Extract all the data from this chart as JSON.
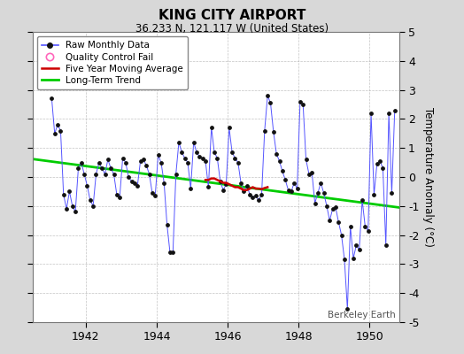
{
  "title": "KING CITY AIRPORT",
  "subtitle": "36.233 N, 121.117 W (United States)",
  "ylabel": "Temperature Anomaly (°C)",
  "watermark": "Berkeley Earth",
  "xlim": [
    1940.5,
    1950.83
  ],
  "ylim": [
    -5,
    5
  ],
  "yticks": [
    -5,
    -4,
    -3,
    -2,
    -1,
    0,
    1,
    2,
    3,
    4,
    5
  ],
  "xticks": [
    1942,
    1944,
    1946,
    1948,
    1950
  ],
  "bg_color": "#d8d8d8",
  "plot_bg_color": "#ffffff",
  "raw_color": "#5555ff",
  "raw_marker_color": "#111111",
  "ma_color": "#cc0000",
  "trend_color": "#00cc00",
  "qc_color": "#ff66bb",
  "raw_data_x": [
    1941.042,
    1941.125,
    1941.208,
    1941.292,
    1941.375,
    1941.458,
    1941.542,
    1941.625,
    1941.708,
    1941.792,
    1941.875,
    1941.958,
    1942.042,
    1942.125,
    1942.208,
    1942.292,
    1942.375,
    1942.458,
    1942.542,
    1942.625,
    1942.708,
    1942.792,
    1942.875,
    1942.958,
    1943.042,
    1943.125,
    1943.208,
    1943.292,
    1943.375,
    1943.458,
    1943.542,
    1943.625,
    1943.708,
    1943.792,
    1943.875,
    1943.958,
    1944.042,
    1944.125,
    1944.208,
    1944.292,
    1944.375,
    1944.458,
    1944.542,
    1944.625,
    1944.708,
    1944.792,
    1944.875,
    1944.958,
    1945.042,
    1945.125,
    1945.208,
    1945.292,
    1945.375,
    1945.458,
    1945.542,
    1945.625,
    1945.708,
    1945.792,
    1945.875,
    1945.958,
    1946.042,
    1946.125,
    1946.208,
    1946.292,
    1946.375,
    1946.458,
    1946.542,
    1946.625,
    1946.708,
    1946.792,
    1946.875,
    1946.958,
    1947.042,
    1947.125,
    1947.208,
    1947.292,
    1947.375,
    1947.458,
    1947.542,
    1947.625,
    1947.708,
    1947.792,
    1947.875,
    1947.958,
    1948.042,
    1948.125,
    1948.208,
    1948.292,
    1948.375,
    1948.458,
    1948.542,
    1948.625,
    1948.708,
    1948.792,
    1948.875,
    1948.958,
    1949.042,
    1949.125,
    1949.208,
    1949.292,
    1949.375,
    1949.458,
    1949.542,
    1949.625,
    1949.708,
    1949.792,
    1949.875,
    1949.958,
    1950.042,
    1950.125,
    1950.208,
    1950.292,
    1950.375,
    1950.458,
    1950.542,
    1950.625,
    1950.708
  ],
  "raw_data_y": [
    2.7,
    1.5,
    1.8,
    1.6,
    -0.6,
    -1.1,
    -0.5,
    -1.0,
    -1.2,
    0.3,
    0.5,
    0.1,
    -0.3,
    -0.8,
    -1.0,
    0.1,
    0.5,
    0.3,
    0.1,
    0.6,
    0.3,
    0.1,
    -0.6,
    -0.7,
    0.65,
    0.5,
    0.0,
    -0.15,
    -0.2,
    -0.3,
    0.55,
    0.6,
    0.4,
    0.1,
    -0.55,
    -0.65,
    0.75,
    0.5,
    -0.2,
    -1.65,
    -2.6,
    -2.6,
    0.1,
    1.2,
    0.85,
    0.65,
    0.5,
    -0.4,
    1.2,
    0.85,
    0.7,
    0.65,
    0.55,
    -0.35,
    1.7,
    0.85,
    0.65,
    -0.15,
    -0.45,
    -0.25,
    1.7,
    0.85,
    0.65,
    0.5,
    -0.2,
    -0.5,
    -0.3,
    -0.6,
    -0.7,
    -0.65,
    -0.8,
    -0.6,
    1.6,
    2.8,
    2.55,
    1.55,
    0.8,
    0.55,
    0.2,
    -0.1,
    -0.45,
    -0.5,
    -0.2,
    -0.4,
    2.6,
    2.5,
    0.6,
    0.1,
    0.15,
    -0.9,
    -0.55,
    -0.2,
    -0.55,
    -1.0,
    -1.5,
    -1.1,
    -1.05,
    -1.55,
    -2.0,
    -2.85,
    -4.55,
    -1.7,
    -2.8,
    -2.35,
    -2.5,
    -0.8,
    -1.7,
    -1.85,
    2.2,
    -0.6,
    0.45,
    0.55,
    0.3,
    -2.35,
    2.2,
    -0.55,
    2.3
  ],
  "ma_data_x": [
    1945.375,
    1945.458,
    1945.542,
    1945.625,
    1945.708,
    1945.792,
    1945.875,
    1945.958,
    1946.042,
    1946.125,
    1946.208,
    1946.292,
    1946.375,
    1946.458,
    1946.542,
    1946.625,
    1946.708,
    1946.792,
    1946.875,
    1946.958,
    1947.042,
    1947.125
  ],
  "ma_data_y": [
    -0.1,
    -0.1,
    -0.05,
    -0.05,
    -0.1,
    -0.15,
    -0.2,
    -0.2,
    -0.25,
    -0.3,
    -0.35,
    -0.35,
    -0.4,
    -0.45,
    -0.45,
    -0.4,
    -0.35,
    -0.4,
    -0.4,
    -0.42,
    -0.38,
    -0.35
  ],
  "trend_x": [
    1940.5,
    1950.83
  ],
  "trend_y": [
    0.62,
    -1.05
  ]
}
